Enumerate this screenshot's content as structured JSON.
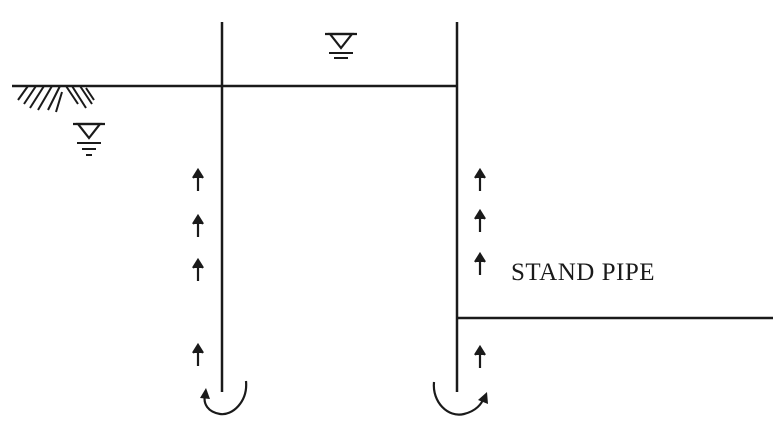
{
  "diagram": {
    "labels": {
      "stand_pipe": "STAND PIPE"
    },
    "colors": {
      "ink": "#1a1a1a",
      "background": "#ffffff"
    },
    "symbols": {
      "water_table": "water-level-triangle",
      "ground": "ground-hatch",
      "flow": "upward-seepage-arrow",
      "return": "curved-return-arrow"
    }
  }
}
